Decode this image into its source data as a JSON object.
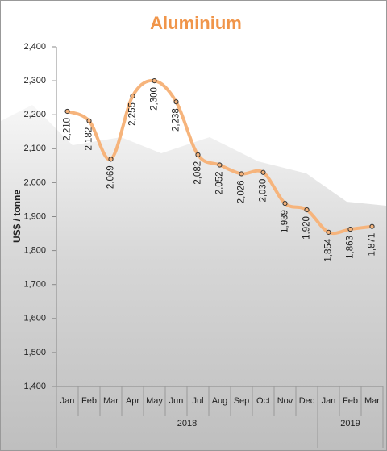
{
  "chart_data": {
    "type": "line",
    "title": "Aluminium",
    "y_label": "US$ / tonne",
    "categories": [
      "Jan",
      "Feb",
      "Mar",
      "Apr",
      "May",
      "Jun",
      "Jul",
      "Aug",
      "Sep",
      "Oct",
      "Nov",
      "Dec",
      "Jan",
      "Feb",
      "Mar"
    ],
    "category_groups": [
      {
        "label": "2018",
        "count": 12
      },
      {
        "label": "2019",
        "count": 3
      }
    ],
    "series": [
      {
        "name": "Aluminium",
        "color": "#f6b47c",
        "values": [
          2210,
          2182,
          2069,
          2255,
          2300,
          2238,
          2082,
          2052,
          2026,
          2030,
          1939,
          1920,
          1854,
          1863,
          1871
        ],
        "value_labels": [
          "2,210",
          "2,182",
          "2,069",
          "2,255",
          "2,300",
          "2,238",
          "2,082",
          "2,052",
          "2,026",
          "2,030",
          "1,939",
          "1,920",
          "1,854",
          "1,863",
          "1,871"
        ]
      }
    ],
    "ylim": [
      1400,
      2400
    ],
    "yticks": [
      {
        "value": 1400,
        "label": "1,400"
      },
      {
        "value": 1500,
        "label": "1,500"
      },
      {
        "value": 1600,
        "label": "1,600"
      },
      {
        "value": 1700,
        "label": "1,700"
      },
      {
        "value": 1800,
        "label": "1,800"
      },
      {
        "value": 1900,
        "label": "1,900"
      },
      {
        "value": 2000,
        "label": "2,000"
      },
      {
        "value": 2100,
        "label": "2,100"
      },
      {
        "value": 2200,
        "label": "2,200"
      },
      {
        "value": 2300,
        "label": "2,300"
      },
      {
        "value": 2400,
        "label": "2,400"
      }
    ],
    "grid": false
  }
}
